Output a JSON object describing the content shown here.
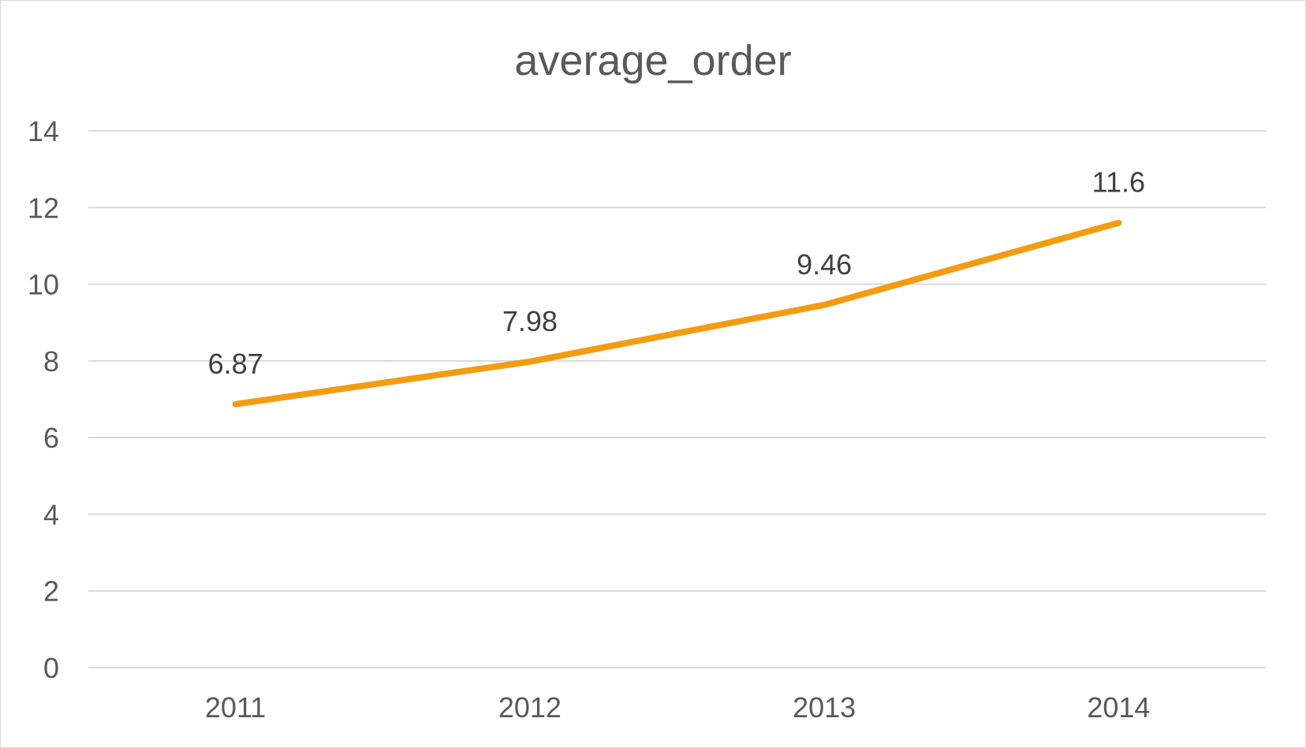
{
  "chart_data": {
    "type": "line",
    "title": "average_order",
    "xlabel": "",
    "ylabel": "",
    "categories": [
      "2011",
      "2012",
      "2013",
      "2014"
    ],
    "series": [
      {
        "values": [
          6.87,
          7.98,
          9.46,
          11.6
        ],
        "color": "#f39c12"
      }
    ],
    "data_labels": [
      "6.87",
      "7.98",
      "9.46",
      "11.6"
    ],
    "ylim": [
      0,
      14
    ],
    "yticks": [
      0,
      2,
      4,
      6,
      8,
      10,
      12,
      14
    ],
    "grid": "horizontal",
    "legend": "none"
  }
}
